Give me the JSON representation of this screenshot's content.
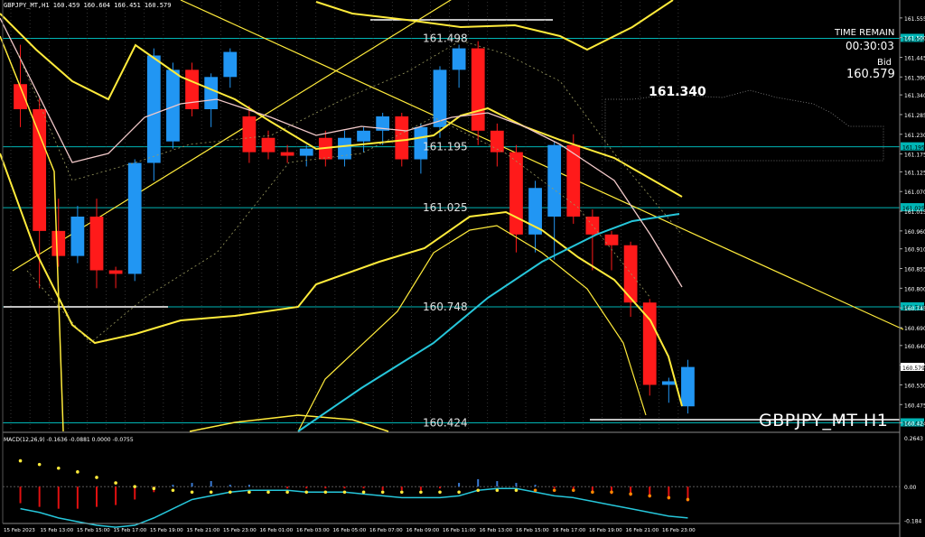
{
  "header": {
    "symbol_info": "GBPJPY_MT,H1  160.459 160.604 160.451 160.579",
    "time_remain_label": "TIME REMAIN",
    "time_remain_value": "00:30:03",
    "bid_label": "Bid",
    "bid_value": "160.579",
    "big_price": "161.340",
    "watermark": "GBPJPY_MT H1"
  },
  "colors": {
    "background": "#000000",
    "bull": "#2196f3",
    "bear": "#ff1a1a",
    "ma_yellow": "#ffeb3b",
    "ma_cyan": "#26c6da",
    "ma_pink": "#f2c9c9",
    "hline": "#00b5b5",
    "axis_text": "#ffffff"
  },
  "chart_data": [
    {
      "type": "candlestick",
      "title": "",
      "ylim": [
        160.4,
        161.6
      ],
      "grid": false,
      "categories": [
        "15 Feb 2023",
        "15 Feb 13:00",
        "15 Feb 15:00",
        "15 Feb 17:00",
        "15 Feb 19:00",
        "15 Feb 21:00",
        "15 Feb 23:00",
        "16 Feb 01:00",
        "16 Feb 03:00",
        "16 Feb 05:00",
        "16 Feb 07:00",
        "16 Feb 09:00",
        "16 Feb 11:00",
        "16 Feb 13:00",
        "16 Feb 15:00",
        "16 Feb 17:00",
        "16 Feb 19:00",
        "16 Feb 21:00",
        "16 Feb 23:00"
      ],
      "y_ticks": [
        "161.555",
        "161.500",
        "161.445",
        "161.390",
        "161.340",
        "161.285",
        "161.230",
        "161.175",
        "161.125",
        "161.070",
        "161.015",
        "160.960",
        "160.910",
        "160.855",
        "160.800",
        "160.745",
        "160.690",
        "160.640",
        "160.585",
        "160.530",
        "160.475",
        "160.424"
      ],
      "levels": [
        {
          "label": "161.498",
          "value": 161.498
        },
        {
          "label": "161.195",
          "value": 161.195
        },
        {
          "label": "161.025",
          "value": 161.025
        },
        {
          "label": "160.748",
          "value": 160.748
        },
        {
          "label": "160.424",
          "value": 160.424
        }
      ],
      "candles": [
        {
          "o": 161.37,
          "h": 161.48,
          "c": 161.3,
          "l": 161.25,
          "dir": "bear"
        },
        {
          "o": 161.3,
          "h": 161.33,
          "c": 160.96,
          "l": 160.8,
          "dir": "bear"
        },
        {
          "o": 160.96,
          "h": 161.05,
          "c": 160.89,
          "l": 160.86,
          "dir": "bear"
        },
        {
          "o": 160.89,
          "h": 161.03,
          "c": 161.0,
          "l": 160.87,
          "dir": "bull"
        },
        {
          "o": 161.0,
          "h": 161.05,
          "c": 160.85,
          "l": 160.8,
          "dir": "bear"
        },
        {
          "o": 160.85,
          "h": 160.86,
          "c": 160.84,
          "l": 160.8,
          "dir": "bear"
        },
        {
          "o": 160.84,
          "h": 161.16,
          "c": 161.15,
          "l": 160.82,
          "dir": "bull"
        },
        {
          "o": 161.15,
          "h": 161.47,
          "c": 161.45,
          "l": 161.1,
          "dir": "bull"
        },
        {
          "o": 161.21,
          "h": 161.43,
          "c": 161.41,
          "l": 161.19,
          "dir": "bull"
        },
        {
          "o": 161.41,
          "h": 161.43,
          "c": 161.3,
          "l": 161.28,
          "dir": "bear"
        },
        {
          "o": 161.3,
          "h": 161.4,
          "c": 161.39,
          "l": 161.25,
          "dir": "bull"
        },
        {
          "o": 161.39,
          "h": 161.47,
          "c": 161.46,
          "l": 161.36,
          "dir": "bull"
        },
        {
          "o": 161.28,
          "h": 161.31,
          "c": 161.18,
          "l": 161.15,
          "dir": "bear"
        },
        {
          "o": 161.22,
          "h": 161.24,
          "c": 161.18,
          "l": 161.16,
          "dir": "bear"
        },
        {
          "o": 161.18,
          "h": 161.2,
          "c": 161.17,
          "l": 161.15,
          "dir": "bear"
        },
        {
          "o": 161.17,
          "h": 161.2,
          "c": 161.19,
          "l": 161.14,
          "dir": "bull"
        },
        {
          "o": 161.22,
          "h": 161.24,
          "c": 161.16,
          "l": 161.14,
          "dir": "bear"
        },
        {
          "o": 161.16,
          "h": 161.24,
          "c": 161.22,
          "l": 161.14,
          "dir": "bull"
        },
        {
          "o": 161.21,
          "h": 161.25,
          "c": 161.24,
          "l": 161.18,
          "dir": "bull"
        },
        {
          "o": 161.24,
          "h": 161.29,
          "c": 161.28,
          "l": 161.2,
          "dir": "bull"
        },
        {
          "o": 161.28,
          "h": 161.29,
          "c": 161.16,
          "l": 161.14,
          "dir": "bear"
        },
        {
          "o": 161.16,
          "h": 161.26,
          "c": 161.25,
          "l": 161.12,
          "dir": "bull"
        },
        {
          "o": 161.25,
          "h": 161.42,
          "c": 161.41,
          "l": 161.22,
          "dir": "bull"
        },
        {
          "o": 161.41,
          "h": 161.48,
          "c": 161.47,
          "l": 161.36,
          "dir": "bull"
        },
        {
          "o": 161.47,
          "h": 161.49,
          "c": 161.24,
          "l": 161.2,
          "dir": "bear"
        },
        {
          "o": 161.24,
          "h": 161.26,
          "c": 161.18,
          "l": 161.14,
          "dir": "bear"
        },
        {
          "o": 161.18,
          "h": 161.2,
          "c": 160.95,
          "l": 160.9,
          "dir": "bear"
        },
        {
          "o": 160.95,
          "h": 161.1,
          "c": 161.08,
          "l": 160.9,
          "dir": "bull"
        },
        {
          "o": 161.0,
          "h": 161.21,
          "c": 161.2,
          "l": 160.88,
          "dir": "bull"
        },
        {
          "o": 161.2,
          "h": 161.23,
          "c": 161.0,
          "l": 160.98,
          "dir": "bear"
        },
        {
          "o": 161.0,
          "h": 161.02,
          "c": 160.95,
          "l": 160.85,
          "dir": "bear"
        },
        {
          "o": 160.95,
          "h": 160.96,
          "c": 160.92,
          "l": 160.85,
          "dir": "bear"
        },
        {
          "o": 160.92,
          "h": 160.93,
          "c": 160.76,
          "l": 160.72,
          "dir": "bear"
        },
        {
          "o": 160.76,
          "h": 160.77,
          "c": 160.53,
          "l": 160.5,
          "dir": "bear"
        },
        {
          "o": 160.53,
          "h": 160.55,
          "c": 160.54,
          "l": 160.48,
          "dir": "bull"
        },
        {
          "o": 160.47,
          "h": 160.6,
          "c": 160.58,
          "l": 160.45,
          "dir": "bull"
        }
      ]
    },
    {
      "type": "bar",
      "title": "MACD(12,26,9) -0.1636 -0.0881 0.0000 -0.0755",
      "ylim": [
        -0.2,
        0.28
      ],
      "y_ticks": [
        "0.2643",
        "0.00",
        "-0.184"
      ],
      "histogram": [
        -0.09,
        -0.11,
        -0.12,
        -0.12,
        -0.11,
        -0.1,
        -0.07,
        -0.03,
        0.01,
        0.02,
        0.03,
        0.01,
        0.01,
        0.0,
        -0.01,
        -0.01,
        -0.01,
        -0.01,
        -0.01,
        -0.02,
        -0.02,
        -0.02,
        -0.01,
        0.02,
        0.04,
        0.03,
        0.02,
        0.01,
        -0.01,
        -0.02,
        -0.03,
        -0.04,
        -0.05,
        -0.06,
        -0.07,
        -0.08
      ],
      "signal": [
        0.14,
        0.12,
        0.1,
        0.08,
        0.05,
        0.02,
        0.0,
        -0.01,
        -0.02,
        -0.03,
        -0.03,
        -0.03,
        -0.03,
        -0.03,
        -0.03,
        -0.03,
        -0.03,
        -0.03,
        -0.03,
        -0.03,
        -0.03,
        -0.03,
        -0.03,
        -0.03,
        -0.02,
        -0.02,
        -0.02,
        -0.02,
        -0.02,
        -0.02,
        -0.03,
        -0.03,
        -0.04,
        -0.05,
        -0.06,
        -0.07
      ],
      "macd": [
        -0.12,
        -0.14,
        -0.17,
        -0.19,
        -0.21,
        -0.22,
        -0.21,
        -0.17,
        -0.12,
        -0.07,
        -0.05,
        -0.03,
        -0.02,
        -0.02,
        -0.02,
        -0.03,
        -0.03,
        -0.03,
        -0.04,
        -0.05,
        -0.06,
        -0.06,
        -0.06,
        -0.05,
        -0.02,
        -0.01,
        -0.01,
        -0.03,
        -0.05,
        -0.06,
        -0.08,
        -0.1,
        -0.12,
        -0.14,
        -0.16,
        -0.17
      ]
    }
  ]
}
